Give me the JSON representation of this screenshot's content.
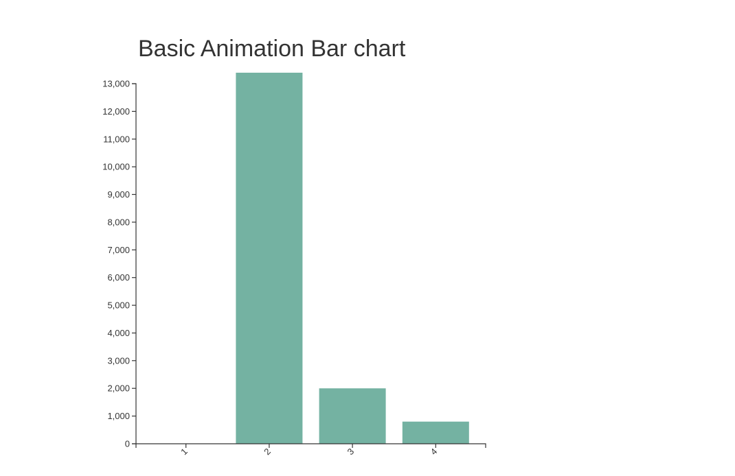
{
  "chart_data": {
    "type": "bar",
    "title": "Basic Animation Bar chart",
    "categories": [
      "1",
      "2",
      "3",
      "4"
    ],
    "values": [
      0,
      13400,
      2000,
      800
    ],
    "ylim": [
      0,
      13000
    ],
    "yticks": [
      "0",
      "1,000",
      "2,000",
      "3,000",
      "4,000",
      "5,000",
      "6,000",
      "7,000",
      "8,000",
      "9,000",
      "10,000",
      "11,000",
      "12,000",
      "13,000"
    ],
    "bar_color": "#74b2a2",
    "axis_color": "#333333",
    "grid": false
  }
}
